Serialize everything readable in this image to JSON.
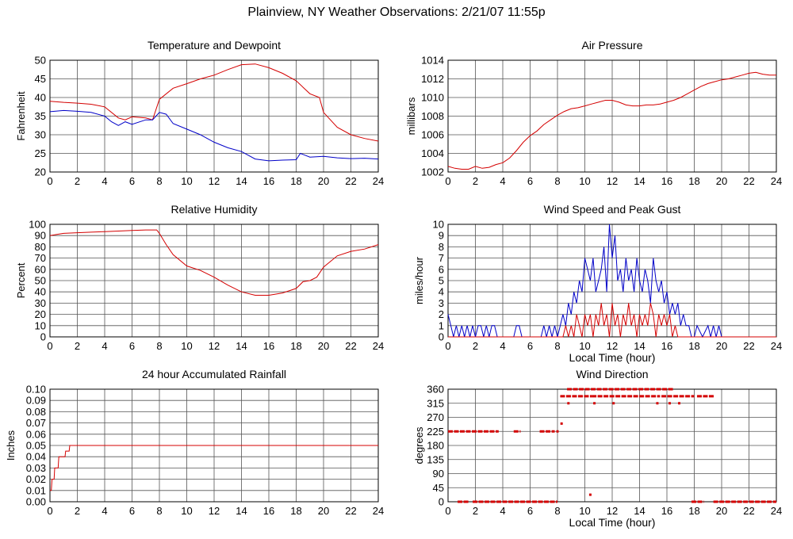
{
  "page_title": "Plainview, NY Weather Observations: 2/21/07 11:55p",
  "colors": {
    "red": "#d40000",
    "blue": "#0000c8",
    "grid": "#555555",
    "frame": "#000000"
  },
  "chart_data": [
    {
      "id": "temp",
      "type": "line",
      "title": "Temperature and Dewpoint",
      "xlabel": "",
      "ylabel": "Fahrenheit",
      "xlim": [
        0,
        24
      ],
      "ylim": [
        20,
        50
      ],
      "xticks": [
        0,
        2,
        4,
        6,
        8,
        10,
        12,
        14,
        16,
        18,
        20,
        22,
        24
      ],
      "yticks": [
        20,
        25,
        30,
        35,
        40,
        45,
        50
      ],
      "grid": true,
      "series": [
        {
          "color": "#d40000",
          "x": [
            0,
            1,
            2,
            3,
            4,
            5,
            5.5,
            6,
            7,
            7.5,
            8,
            9,
            10,
            11,
            12,
            13,
            14,
            15,
            16,
            17,
            18,
            19,
            19.7,
            20,
            21,
            22,
            23,
            24
          ],
          "y": [
            39,
            38.7,
            38.5,
            38.2,
            37.5,
            34.5,
            34,
            34.8,
            34.5,
            34,
            39.5,
            42.5,
            43.7,
            45,
            46,
            47.5,
            48.8,
            49,
            48,
            46.5,
            44.5,
            41,
            40,
            36,
            32,
            30,
            29,
            28.3
          ]
        },
        {
          "color": "#0000c8",
          "x": [
            0,
            1,
            2,
            3,
            4,
            4.5,
            5,
            5.5,
            6,
            7,
            7.5,
            8,
            8.5,
            9,
            10,
            11,
            12,
            13,
            14,
            15,
            16,
            17,
            18,
            18.3,
            19,
            20,
            21,
            22,
            23,
            24
          ],
          "y": [
            36.2,
            36.5,
            36.3,
            36,
            35,
            33.5,
            32.5,
            33.5,
            32.8,
            34,
            34,
            36,
            35.5,
            33,
            31.5,
            30,
            28,
            26.5,
            25.5,
            23.5,
            23,
            23.2,
            23.3,
            25,
            24,
            24.2,
            23.8,
            23.6,
            23.7,
            23.5
          ]
        }
      ]
    },
    {
      "id": "pressure",
      "type": "line",
      "title": "Air Pressure",
      "xlabel": "",
      "ylabel": "millibars",
      "xlim": [
        0,
        24
      ],
      "ylim": [
        1002,
        1014
      ],
      "xticks": [
        0,
        2,
        4,
        6,
        8,
        10,
        12,
        14,
        16,
        18,
        20,
        22,
        24
      ],
      "yticks": [
        1002,
        1004,
        1006,
        1008,
        1010,
        1012,
        1014
      ],
      "grid": true,
      "series": [
        {
          "color": "#d40000",
          "x": [
            0,
            0.5,
            1,
            1.5,
            2,
            2.5,
            3,
            3.5,
            4,
            4.5,
            5,
            5.5,
            6,
            6.5,
            7,
            7.5,
            8,
            8.5,
            9,
            9.5,
            10,
            10.5,
            11,
            11.5,
            12,
            12.5,
            13,
            13.5,
            14,
            14.5,
            15,
            15.5,
            16,
            16.5,
            17,
            17.5,
            18,
            18.5,
            19,
            19.5,
            20,
            20.5,
            21,
            21.5,
            22,
            22.5,
            23,
            23.5,
            24
          ],
          "y": [
            1002.6,
            1002.4,
            1002.3,
            1002.3,
            1002.6,
            1002.4,
            1002.5,
            1002.8,
            1003.0,
            1003.5,
            1004.3,
            1005.2,
            1005.9,
            1006.4,
            1007.1,
            1007.6,
            1008.1,
            1008.5,
            1008.8,
            1008.9,
            1009.1,
            1009.3,
            1009.5,
            1009.7,
            1009.7,
            1009.5,
            1009.2,
            1009.1,
            1009.1,
            1009.2,
            1009.2,
            1009.3,
            1009.5,
            1009.7,
            1010.0,
            1010.4,
            1010.8,
            1011.2,
            1011.5,
            1011.7,
            1011.9,
            1012.0,
            1012.2,
            1012.4,
            1012.6,
            1012.7,
            1012.5,
            1012.4,
            1012.4
          ]
        }
      ]
    },
    {
      "id": "humidity",
      "type": "line",
      "title": "Relative Humidity",
      "xlabel": "",
      "ylabel": "Percent",
      "xlim": [
        0,
        24
      ],
      "ylim": [
        0,
        100
      ],
      "xticks": [
        0,
        2,
        4,
        6,
        8,
        10,
        12,
        14,
        16,
        18,
        20,
        22,
        24
      ],
      "yticks": [
        0,
        10,
        20,
        30,
        40,
        50,
        60,
        70,
        80,
        90,
        100
      ],
      "grid": true,
      "series": [
        {
          "color": "#d40000",
          "x": [
            0,
            0.5,
            1,
            2,
            3,
            4,
            5,
            6,
            7,
            7.8,
            8,
            8.5,
            9,
            10,
            11,
            12,
            13,
            14,
            15,
            16,
            17,
            18,
            18.5,
            19,
            19.5,
            20,
            21,
            22,
            23,
            24
          ],
          "y": [
            90,
            91,
            92,
            92.5,
            93,
            93.5,
            94,
            94.5,
            95,
            95,
            92,
            82,
            73,
            63,
            59,
            53,
            46,
            40,
            37,
            37,
            39,
            43,
            49,
            50,
            53,
            62,
            72,
            76,
            78,
            82
          ]
        }
      ]
    },
    {
      "id": "wind",
      "type": "line",
      "title": "Wind Speed and Peak Gust",
      "xlabel": "Local Time (hour)",
      "ylabel": "miles/hour",
      "xlim": [
        0,
        24
      ],
      "ylim": [
        0,
        10
      ],
      "xticks": [
        0,
        2,
        4,
        6,
        8,
        10,
        12,
        14,
        16,
        18,
        20,
        22,
        24
      ],
      "yticks": [
        0,
        1,
        2,
        3,
        4,
        5,
        6,
        7,
        8,
        9,
        10
      ],
      "grid": true,
      "series": [
        {
          "color": "#0000c8",
          "x": [
            0,
            0.2,
            0.4,
            0.6,
            0.8,
            1.0,
            1.2,
            1.4,
            1.6,
            1.8,
            2.0,
            2.2,
            2.4,
            2.6,
            2.8,
            3.0,
            3.2,
            3.4,
            3.6,
            4.0,
            4.5,
            4.8,
            5.0,
            5.2,
            5.4,
            5.6,
            6.0,
            6.5,
            6.8,
            7.0,
            7.2,
            7.4,
            7.6,
            7.8,
            8.0,
            8.2,
            8.4,
            8.6,
            8.8,
            9.0,
            9.2,
            9.4,
            9.6,
            9.8,
            10.0,
            10.2,
            10.4,
            10.6,
            10.8,
            11.0,
            11.2,
            11.4,
            11.6,
            11.8,
            12.0,
            12.2,
            12.4,
            12.6,
            12.8,
            13.0,
            13.2,
            13.4,
            13.6,
            13.8,
            14.0,
            14.2,
            14.4,
            14.6,
            14.8,
            15.0,
            15.2,
            15.4,
            15.6,
            15.8,
            16.0,
            16.2,
            16.4,
            16.6,
            16.8,
            17.0,
            17.2,
            17.4,
            17.6,
            17.8,
            18.0,
            18.2,
            18.6,
            19.0,
            19.2,
            19.4,
            19.6,
            19.8,
            20.0,
            21,
            22,
            23,
            24
          ],
          "y": [
            2,
            1,
            0,
            1,
            0,
            1,
            0,
            1,
            0,
            1,
            0,
            1,
            1,
            0,
            1,
            0,
            1,
            1,
            0,
            0,
            0,
            0,
            1,
            1,
            0,
            0,
            0,
            0,
            0,
            1,
            0,
            1,
            0,
            1,
            0,
            1,
            2,
            1,
            3,
            2,
            4,
            3,
            5,
            4,
            7,
            6,
            5,
            7,
            4,
            5,
            6,
            8,
            4,
            10,
            7,
            9,
            5,
            6,
            4,
            7,
            5,
            6,
            4,
            7,
            5,
            4,
            6,
            5,
            3,
            7,
            5,
            4,
            5,
            3,
            4,
            2,
            3,
            2,
            3,
            1,
            2,
            1,
            1,
            0,
            0,
            1,
            0,
            1,
            0,
            1,
            0,
            1,
            0,
            0,
            0,
            0,
            0
          ]
        },
        {
          "color": "#d40000",
          "x": [
            0,
            8.4,
            8.6,
            8.8,
            9.0,
            9.2,
            9.4,
            9.6,
            9.8,
            10.0,
            10.2,
            10.4,
            10.6,
            10.8,
            11.0,
            11.2,
            11.4,
            11.6,
            11.8,
            12.0,
            12.2,
            12.4,
            12.6,
            12.8,
            13.0,
            13.2,
            13.4,
            13.6,
            13.8,
            14.0,
            14.2,
            14.4,
            14.6,
            14.8,
            15.0,
            15.2,
            15.4,
            15.6,
            15.8,
            16.0,
            16.2,
            16.4,
            16.6,
            16.8,
            17.0,
            24
          ],
          "y": [
            0,
            0,
            1,
            0,
            1,
            0,
            2,
            1,
            0,
            2,
            1,
            2,
            0,
            2,
            1,
            3,
            1,
            2,
            0,
            3,
            1,
            2,
            0,
            2,
            1,
            3,
            1,
            2,
            0,
            2,
            1,
            2,
            1,
            3,
            2,
            0,
            2,
            1,
            2,
            1,
            2,
            0,
            1,
            0,
            0,
            0
          ]
        }
      ]
    },
    {
      "id": "rain",
      "type": "line",
      "title": "24 hour Accumulated Rainfall",
      "xlabel": "",
      "ylabel": "Inches",
      "xlim": [
        0,
        24
      ],
      "ylim": [
        0,
        0.1
      ],
      "xticks": [
        0,
        2,
        4,
        6,
        8,
        10,
        12,
        14,
        16,
        18,
        20,
        22,
        24
      ],
      "yticks": [
        0.0,
        0.01,
        0.02,
        0.03,
        0.04,
        0.05,
        0.06,
        0.07,
        0.08,
        0.09,
        0.1
      ],
      "ytick_labels": [
        "0.00",
        "0.01",
        "0.02",
        "0.03",
        "0.04",
        "0.05",
        "0.06",
        "0.07",
        "0.08",
        "0.09",
        "0.10"
      ],
      "grid": true,
      "series": [
        {
          "color": "#d40000",
          "x": [
            0,
            0.1,
            0.15,
            0.3,
            0.35,
            0.6,
            0.65,
            1.1,
            1.15,
            1.4,
            1.45,
            24
          ],
          "y": [
            0.01,
            0.01,
            0.02,
            0.02,
            0.03,
            0.03,
            0.04,
            0.04,
            0.045,
            0.045,
            0.05,
            0.05
          ]
        }
      ]
    },
    {
      "id": "winddir",
      "type": "scatter",
      "title": "Wind Direction",
      "xlabel": "Local Time (hour)",
      "ylabel": "degrees",
      "xlim": [
        0,
        24
      ],
      "ylim": [
        0,
        360
      ],
      "xticks": [
        0,
        2,
        4,
        6,
        8,
        10,
        12,
        14,
        16,
        18,
        20,
        22,
        24
      ],
      "yticks": [
        0,
        45,
        90,
        135,
        180,
        225,
        270,
        315,
        360
      ],
      "grid": true,
      "color": "#d40000",
      "segments": [
        {
          "x0": 0.0,
          "x1": 3.7,
          "y": 225
        },
        {
          "x0": 4.8,
          "x1": 5.3,
          "y": 225
        },
        {
          "x0": 6.7,
          "x1": 7.8,
          "y": 225
        },
        {
          "x0": 0.7,
          "x1": 1.5,
          "y": 0
        },
        {
          "x0": 1.8,
          "x1": 8.0,
          "y": 0
        },
        {
          "x0": 8.2,
          "x1": 10.5,
          "y": 337.5
        },
        {
          "x0": 10.5,
          "x1": 15.5,
          "y": 337.5
        },
        {
          "x0": 15.6,
          "x1": 18.0,
          "y": 337.5
        },
        {
          "x0": 18.2,
          "x1": 19.5,
          "y": 337.5
        },
        {
          "x0": 8.7,
          "x1": 16.5,
          "y": 360
        },
        {
          "x0": 17.8,
          "x1": 18.7,
          "y": 0
        },
        {
          "x0": 19.4,
          "x1": 24.0,
          "y": 0
        }
      ],
      "points": [
        {
          "x": 8.0,
          "y": 225
        },
        {
          "x": 8.3,
          "y": 250
        },
        {
          "x": 8.8,
          "y": 315
        },
        {
          "x": 10.4,
          "y": 22.5
        },
        {
          "x": 10.7,
          "y": 315
        },
        {
          "x": 12.1,
          "y": 315
        },
        {
          "x": 15.3,
          "y": 315
        },
        {
          "x": 16.2,
          "y": 315
        },
        {
          "x": 16.9,
          "y": 315
        }
      ]
    }
  ]
}
